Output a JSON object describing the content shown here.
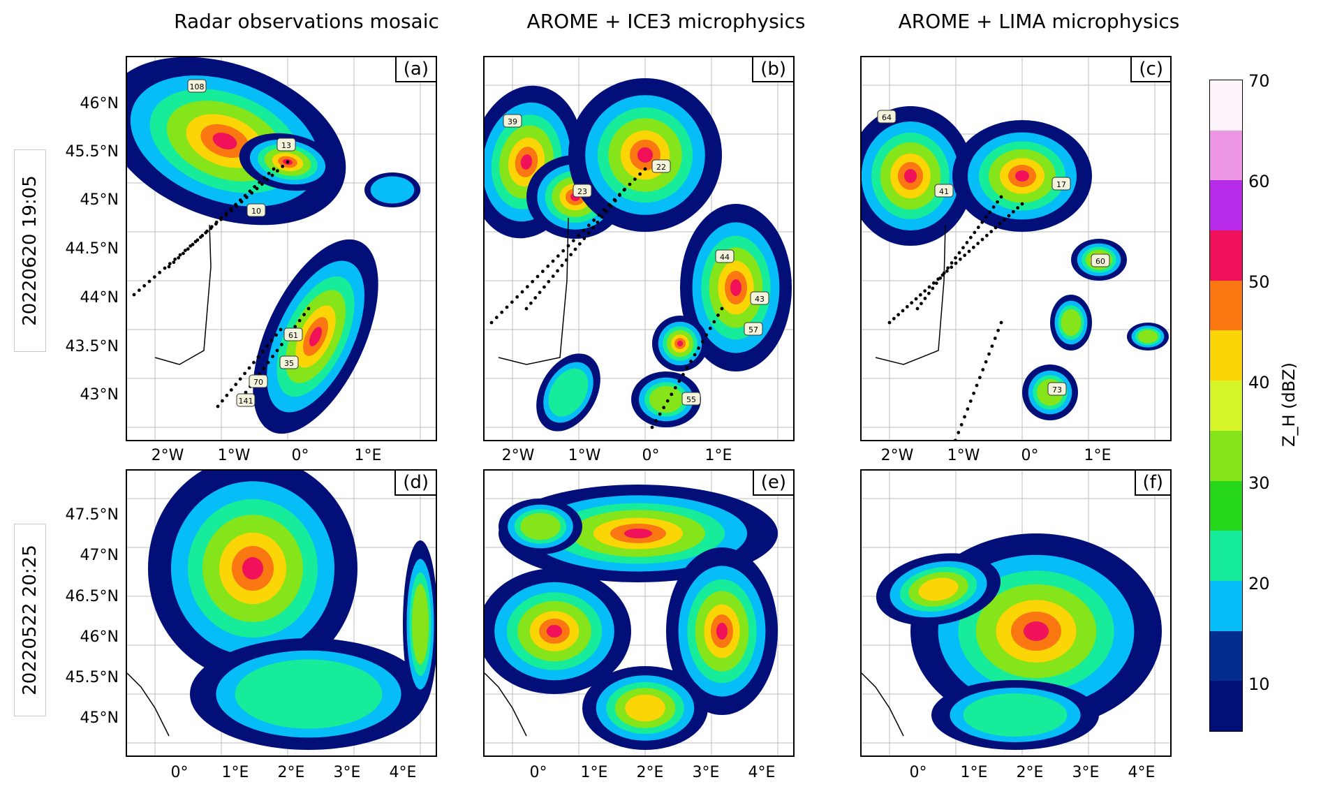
{
  "columns": [
    "Radar observations mosaic",
    "AROME + ICE3 microphysics",
    "AROME + LIMA microphysics"
  ],
  "rows": [
    "20220620 19:05",
    "20220522 20:25"
  ],
  "panels": [
    {
      "tag": "(a)",
      "labels": [
        "108",
        "13",
        "10",
        "61",
        "35",
        "70",
        "141"
      ]
    },
    {
      "tag": "(b)",
      "labels": [
        "39",
        "23",
        "22",
        "44",
        "43",
        "57",
        "55"
      ]
    },
    {
      "tag": "(c)",
      "labels": [
        "64",
        "41",
        "17",
        "60",
        "73"
      ]
    },
    {
      "tag": "(d)",
      "labels": []
    },
    {
      "tag": "(e)",
      "labels": []
    },
    {
      "tag": "(f)",
      "labels": []
    }
  ],
  "row1_yticks": [
    "46°N",
    "45.5°N",
    "45°N",
    "44.5°N",
    "44°N",
    "43.5°N",
    "43°N"
  ],
  "row1_xticks": [
    "2°W",
    "1°W",
    "0°",
    "1°E"
  ],
  "row2_yticks": [
    "47.5°N",
    "47°N",
    "46.5°N",
    "46°N",
    "45.5°N",
    "45°N"
  ],
  "row2_xticks": [
    "0°",
    "1°E",
    "2°E",
    "3°E",
    "4°E"
  ],
  "colorbar": {
    "ticks": [
      "70",
      "60",
      "50",
      "40",
      "30",
      "20",
      "10"
    ],
    "label": "Z_H (dBZ)",
    "colors": [
      "#fdf5fb",
      "#ee97e6",
      "#b82be8",
      "#f0115a",
      "#fa7712",
      "#fcd507",
      "#d6f529",
      "#86e51a",
      "#25d61a",
      "#16ec9a",
      "#06bdf7",
      "#032d8f",
      "#020f78"
    ]
  }
}
